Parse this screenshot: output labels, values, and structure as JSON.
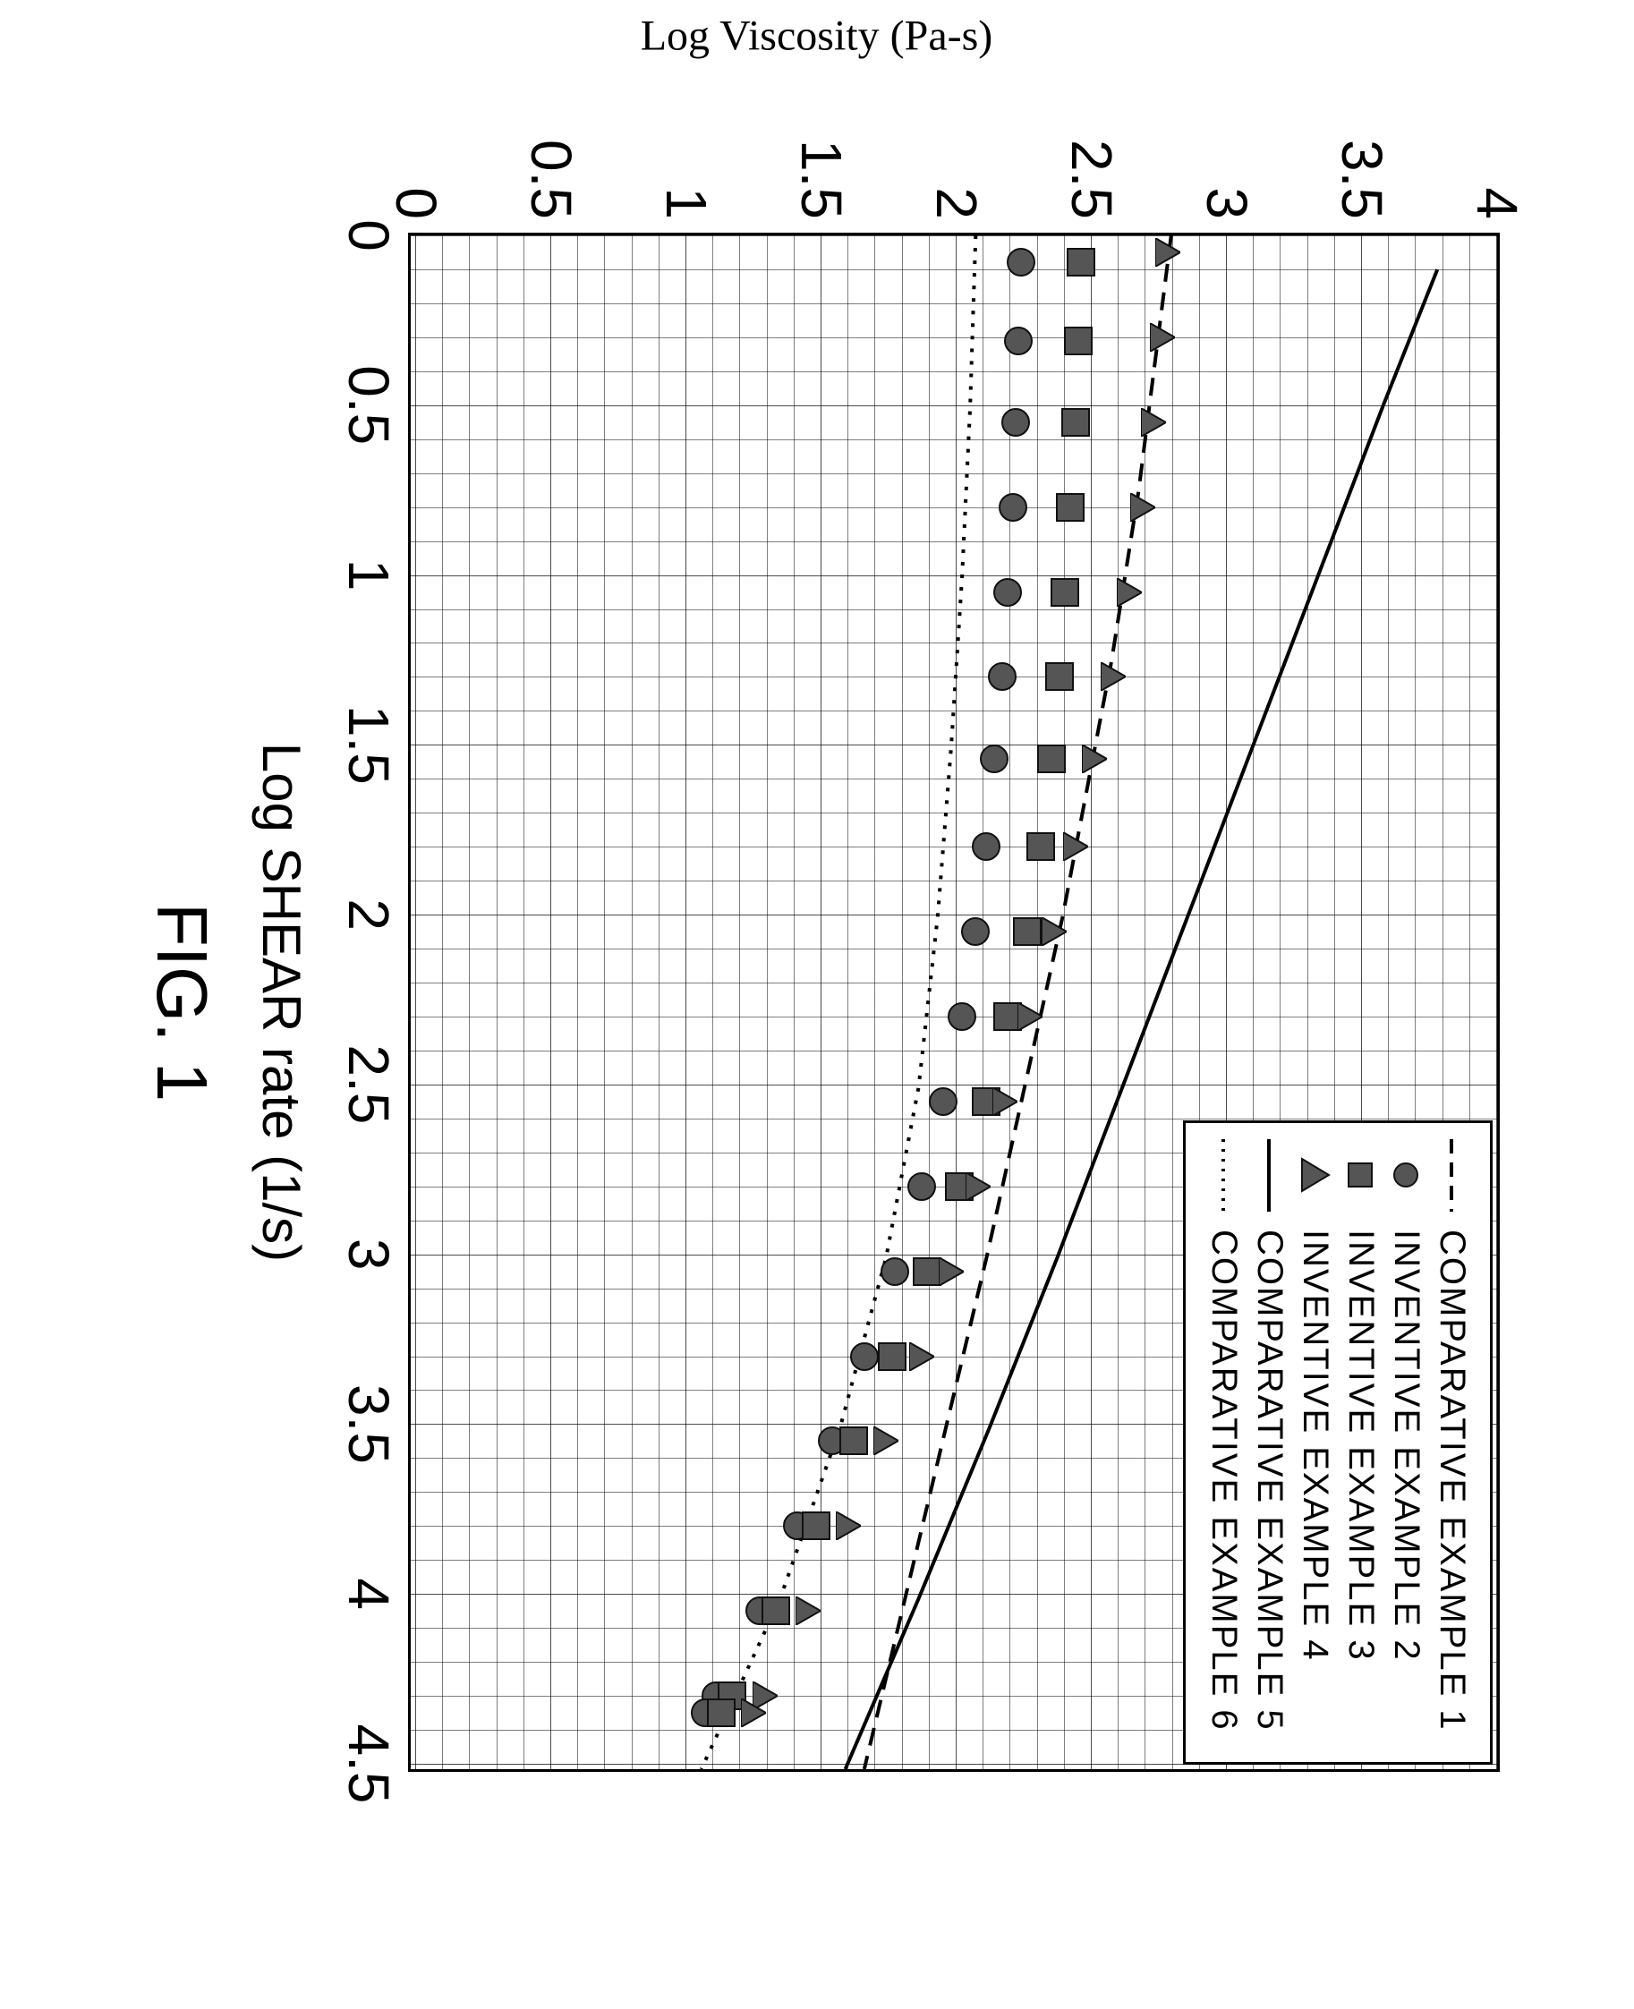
{
  "figure": {
    "caption": "FIG. 1",
    "xlabel": "Log SHEAR rate (1/s)",
    "ylabel": "Log Viscosity (Pa-s)",
    "background_color": "#ffffff",
    "axis_color": "#000000",
    "grid_color": "#000000",
    "xlim": [
      0,
      4.5
    ],
    "ylim": [
      0,
      4
    ],
    "xtick_step": 0.5,
    "xtick_minor": 0.1,
    "ytick_step": 0.5,
    "ytick_minor": 0.1,
    "xticks": [
      "0",
      "0.5",
      "1",
      "1.5",
      "2",
      "2.5",
      "3",
      "3.5",
      "4",
      "4.5"
    ],
    "yticks": [
      "0",
      "0.5",
      "1",
      "1.5",
      "2",
      "2.5",
      "3",
      "3.5",
      "4"
    ],
    "tick_fontsize": 64,
    "label_fontsize": 60,
    "caption_fontsize": 80,
    "ylabel_fontsize": 48,
    "legend_fontsize": 38,
    "marker_size": 28,
    "line_width": 4,
    "legend_border_color": "#000000",
    "legend_background": "#ffffff",
    "series": [
      {
        "name": "COMPARATIVE EXAMPLE 1",
        "type": "line",
        "line_style": "dashed",
        "dash": "20 12",
        "color": "#000000",
        "x": [
          0.0,
          0.25,
          0.5,
          0.75,
          1.0,
          1.25,
          1.5,
          1.75,
          2.0,
          2.25,
          2.5,
          2.75,
          3.0,
          3.5,
          4.0,
          4.5
        ],
        "y": [
          2.8,
          2.76,
          2.72,
          2.68,
          2.63,
          2.58,
          2.52,
          2.46,
          2.4,
          2.33,
          2.26,
          2.19,
          2.12,
          1.97,
          1.82,
          1.67
        ]
      },
      {
        "name": "INVENTIVE EXAMPLE 2",
        "type": "scatter",
        "marker": "circle",
        "color": "#555555",
        "edge_color": "#111111",
        "x": [
          0.08,
          0.31,
          0.55,
          0.8,
          1.05,
          1.3,
          1.54,
          1.8,
          2.05,
          2.3,
          2.55,
          2.8,
          3.05,
          3.3,
          3.55,
          3.8,
          4.05,
          4.3,
          4.35
        ],
        "y": [
          2.24,
          2.23,
          2.22,
          2.21,
          2.19,
          2.17,
          2.14,
          2.11,
          2.07,
          2.02,
          1.95,
          1.87,
          1.77,
          1.66,
          1.54,
          1.41,
          1.27,
          1.11,
          1.07
        ]
      },
      {
        "name": "INVENTIVE EXAMPLE 3",
        "type": "scatter",
        "marker": "square",
        "color": "#555555",
        "edge_color": "#111111",
        "x": [
          0.08,
          0.31,
          0.55,
          0.8,
          1.05,
          1.3,
          1.54,
          1.8,
          2.05,
          2.3,
          2.55,
          2.8,
          3.05,
          3.3,
          3.55,
          3.8,
          4.05,
          4.3,
          4.35
        ],
        "y": [
          2.46,
          2.45,
          2.44,
          2.42,
          2.4,
          2.38,
          2.35,
          2.31,
          2.26,
          2.19,
          2.11,
          2.01,
          1.89,
          1.76,
          1.62,
          1.48,
          1.33,
          1.17,
          1.13
        ]
      },
      {
        "name": "INVENTIVE EXAMPLE 4",
        "type": "scatter",
        "marker": "triangle",
        "color": "#555555",
        "edge_color": "#111111",
        "x": [
          0.05,
          0.3,
          0.55,
          0.8,
          1.05,
          1.3,
          1.54,
          1.8,
          2.05,
          2.3,
          2.55,
          2.8,
          3.05,
          3.3,
          3.55,
          3.8,
          4.05,
          4.3,
          4.35
        ],
        "y": [
          2.78,
          2.76,
          2.73,
          2.69,
          2.64,
          2.58,
          2.51,
          2.44,
          2.36,
          2.27,
          2.18,
          2.08,
          1.98,
          1.87,
          1.74,
          1.6,
          1.45,
          1.29,
          1.25
        ]
      },
      {
        "name": "COMPARATIVE EXAMPLE 5",
        "type": "line",
        "line_style": "solid",
        "color": "#000000",
        "x": [
          0.1,
          0.5,
          1.0,
          1.5,
          2.0,
          2.5,
          3.0,
          3.5,
          4.0,
          4.5
        ],
        "y": [
          3.78,
          3.58,
          3.34,
          3.1,
          2.86,
          2.62,
          2.38,
          2.13,
          1.87,
          1.6
        ]
      },
      {
        "name": "COMPARATIVE EXAMPLE 6",
        "type": "line",
        "line_style": "dotted",
        "dash": "4 10",
        "color": "#000000",
        "x": [
          0.0,
          0.25,
          0.5,
          1.0,
          1.5,
          2.0,
          2.5,
          3.0,
          3.5,
          4.0,
          4.5
        ],
        "y": [
          2.08,
          2.07,
          2.06,
          2.03,
          1.99,
          1.94,
          1.87,
          1.75,
          1.58,
          1.36,
          1.07
        ]
      }
    ]
  }
}
